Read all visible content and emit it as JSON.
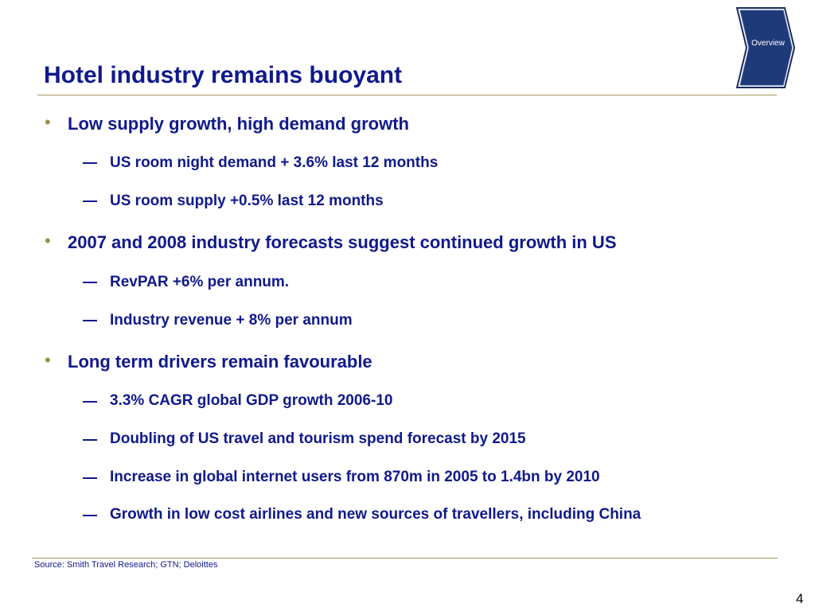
{
  "header": {
    "title": "Hotel industry remains buoyant",
    "section_tab": "Overview"
  },
  "bullets": [
    {
      "text": "Low supply growth, high demand growth",
      "subs": [
        "US room night demand + 3.6% last 12 months",
        "US room supply +0.5% last 12 months"
      ]
    },
    {
      "text": "2007 and 2008 industry forecasts suggest continued growth in US",
      "subs": [
        "RevPAR +6% per annum.",
        "Industry revenue + 8% per annum"
      ]
    },
    {
      "text": "Long term drivers remain favourable",
      "subs": [
        "3.3% CAGR global GDP growth 2006-10",
        "Doubling of US travel and tourism spend forecast by 2015",
        "Increase in global internet users from 870m in 2005 to 1.4bn by 2010",
        "Growth in low cost airlines and new sources of travellers, including China"
      ]
    }
  ],
  "footer": {
    "source": "Source: Smith Travel Research; GTN; Deloittes",
    "page_number": "4"
  },
  "colors": {
    "title_blue": "#10198c",
    "rule_gold": "#a69660",
    "bullet_gold": "#a08d48",
    "chevron_blue": "#1f3a78"
  }
}
